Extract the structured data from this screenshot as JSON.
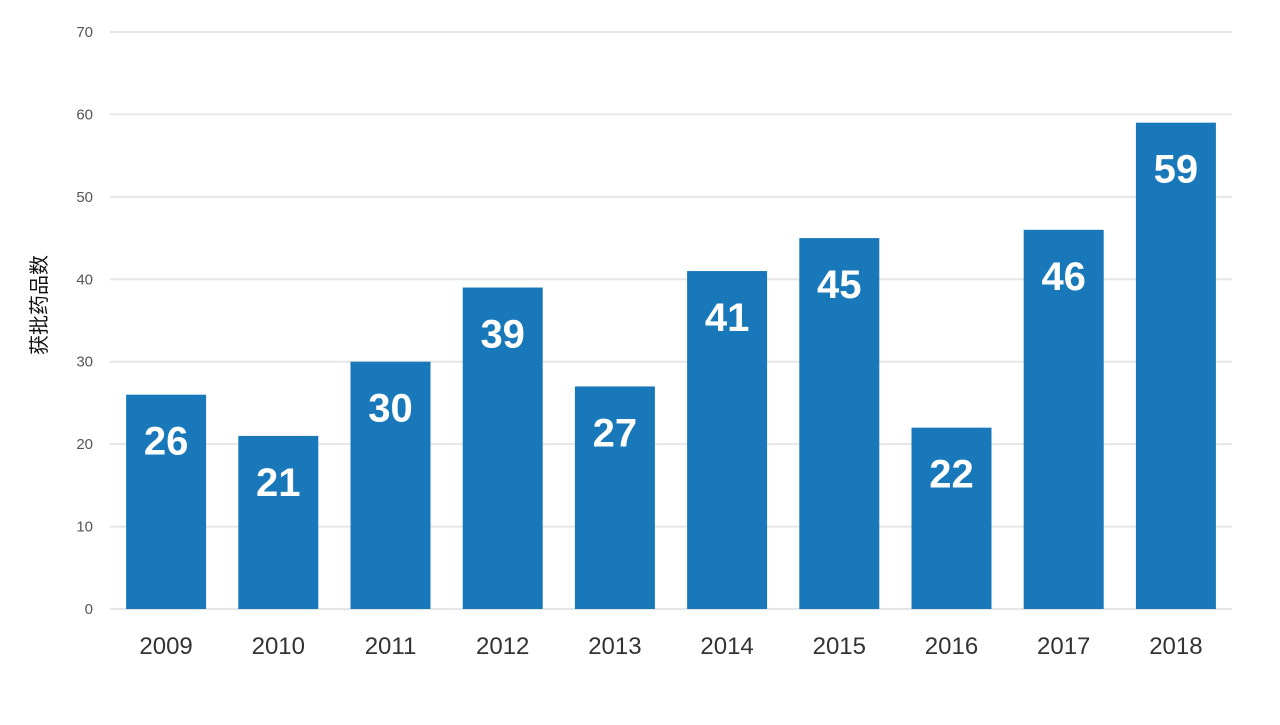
{
  "chart_data": {
    "type": "bar",
    "title": "",
    "xlabel": "",
    "ylabel": "获批药品数",
    "categories": [
      "2009",
      "2010",
      "2011",
      "2012",
      "2013",
      "2014",
      "2015",
      "2016",
      "2017",
      "2018"
    ],
    "values": [
      26,
      21,
      30,
      39,
      27,
      41,
      45,
      22,
      46,
      59
    ],
    "ylim": [
      0,
      70
    ],
    "yticks": [
      0,
      10,
      20,
      30,
      40,
      50,
      60,
      70
    ],
    "grid": true,
    "legend": "none",
    "colors": {
      "bar": "#1878ba",
      "grid": "#e6e6e6",
      "data_label": "#ffffff"
    }
  }
}
